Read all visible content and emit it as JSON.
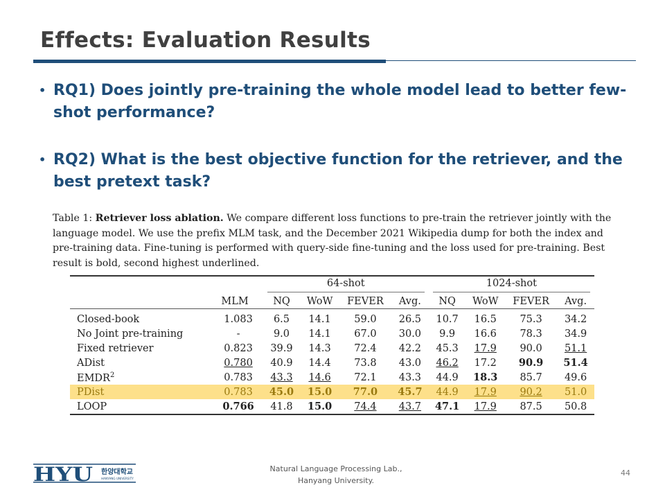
{
  "title": "Effects: Evaluation Results",
  "bullets": [
    {
      "dot": "•",
      "text": "RQ1) Does jointly pre-training the whole model lead to better few-shot performance?"
    },
    {
      "dot": "•",
      "text": "RQ2) What is the best objective function for the retriever, and the best pretext task?"
    }
  ],
  "caption": {
    "prefix": "Table 1: ",
    "bold": "Retriever loss ablation.",
    "rest": " We compare different loss functions to pre-train the retriever jointly with the language model. We use the prefix MLM task, and the December 2021 Wikipedia dump for both the index and pre-training data. Fine-tuning is performed with query-side fine-tuning and the loss used for pre-training. Best result is bold, second highest underlined."
  },
  "table": {
    "groups": [
      "64-shot",
      "1024-shot"
    ],
    "headers": [
      "MLM",
      "NQ",
      "WoW",
      "FEVER",
      "Avg.",
      "NQ",
      "WoW",
      "FEVER",
      "Avg."
    ],
    "rows": [
      {
        "label": "Closed-book",
        "cells": [
          [
            "1.083",
            ""
          ],
          [
            "6.5",
            ""
          ],
          [
            "14.1",
            ""
          ],
          [
            "59.0",
            ""
          ],
          [
            "26.5",
            ""
          ],
          [
            "10.7",
            ""
          ],
          [
            "16.5",
            ""
          ],
          [
            "75.3",
            ""
          ],
          [
            "34.2",
            ""
          ]
        ]
      },
      {
        "label": "No Joint pre-training",
        "cells": [
          [
            "-",
            ""
          ],
          [
            "9.0",
            ""
          ],
          [
            "14.1",
            ""
          ],
          [
            "67.0",
            ""
          ],
          [
            "30.0",
            ""
          ],
          [
            "9.9",
            ""
          ],
          [
            "16.6",
            ""
          ],
          [
            "78.3",
            ""
          ],
          [
            "34.9",
            ""
          ]
        ]
      },
      {
        "label": "Fixed retriever",
        "cells": [
          [
            "0.823",
            ""
          ],
          [
            "39.9",
            ""
          ],
          [
            "14.3",
            ""
          ],
          [
            "72.4",
            ""
          ],
          [
            "42.2",
            ""
          ],
          [
            "45.3",
            ""
          ],
          [
            "17.9",
            "u"
          ],
          [
            "90.0",
            ""
          ],
          [
            "51.1",
            "u"
          ]
        ]
      },
      {
        "label": "ADist",
        "cells": [
          [
            "0.780",
            "u"
          ],
          [
            "40.9",
            ""
          ],
          [
            "14.4",
            ""
          ],
          [
            "73.8",
            ""
          ],
          [
            "43.0",
            ""
          ],
          [
            "46.2",
            "u"
          ],
          [
            "17.2",
            ""
          ],
          [
            "90.9",
            "b"
          ],
          [
            "51.4",
            "b"
          ]
        ]
      },
      {
        "label": "EMDR",
        "sup": "2",
        "cells": [
          [
            "0.783",
            ""
          ],
          [
            "43.3",
            "u"
          ],
          [
            "14.6",
            "u"
          ],
          [
            "72.1",
            ""
          ],
          [
            "43.3",
            ""
          ],
          [
            "44.9",
            ""
          ],
          [
            "18.3",
            "b"
          ],
          [
            "85.7",
            ""
          ],
          [
            "49.6",
            ""
          ]
        ]
      },
      {
        "label": "PDist",
        "highlight": true,
        "cells": [
          [
            "0.783",
            ""
          ],
          [
            "45.0",
            "b"
          ],
          [
            "15.0",
            "b"
          ],
          [
            "77.0",
            "b"
          ],
          [
            "45.7",
            "b"
          ],
          [
            "44.9",
            ""
          ],
          [
            "17.9",
            "u"
          ],
          [
            "90.2",
            "u"
          ],
          [
            "51.0",
            ""
          ]
        ]
      },
      {
        "label": "LOOP",
        "cells": [
          [
            "0.766",
            "b"
          ],
          [
            "41.8",
            ""
          ],
          [
            "15.0",
            "b"
          ],
          [
            "74.4",
            "u"
          ],
          [
            "43.7",
            "u"
          ],
          [
            "47.1",
            "b"
          ],
          [
            "17.9",
            "u"
          ],
          [
            "87.5",
            ""
          ],
          [
            "50.8",
            ""
          ]
        ]
      }
    ],
    "highlight_color": "#fde08a"
  },
  "footer": {
    "line1": "Natural Language Processing Lab.,",
    "line2": "Hanyang University.",
    "page": "44"
  },
  "logo": {
    "mark": "HYU",
    "korean": "한양대학교",
    "english": "HANYANG UNIVERSITY"
  },
  "colors": {
    "accent": "#1f4e79",
    "title": "#404040"
  }
}
